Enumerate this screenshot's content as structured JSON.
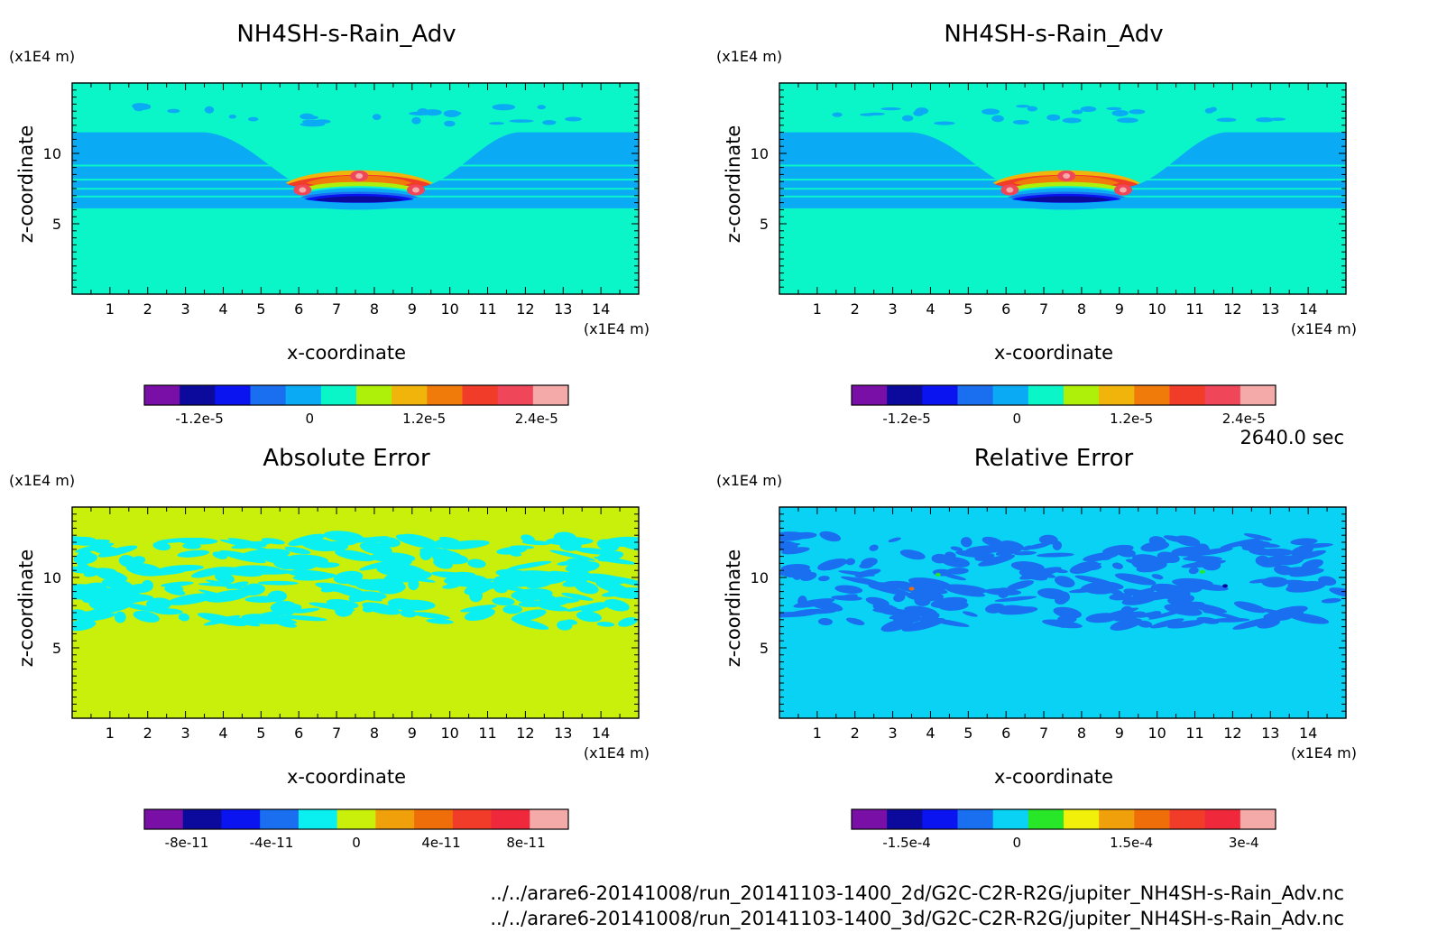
{
  "time_label": "2640.0 sec",
  "files": [
    "../../arare6-20141008/run_20141103-1400_2d/G2C-C2R-R2G/jupiter_NH4SH-s-Rain_Adv.nc",
    "../../arare6-20141008/run_20141103-1400_3d/G2C-C2R-R2G/jupiter_NH4SH-s-Rain_Adv.nc"
  ],
  "chart_data": [
    {
      "type": "heatmap",
      "title": "NH4SH-s-Rain_Adv",
      "xlabel": "x-coordinate",
      "ylabel": "z-coordinate",
      "x_unit": "(x1E4 m)",
      "y_unit": "(x1E4 m)",
      "xlim": [
        0,
        15
      ],
      "ylim": [
        0,
        15
      ],
      "xticks": [
        "1",
        "2",
        "3",
        "4",
        "5",
        "6",
        "7",
        "8",
        "9",
        "10",
        "11",
        "12",
        "13",
        "14"
      ],
      "yticks": [
        "5",
        "10"
      ],
      "colorbar": {
        "colors": [
          "#7a0fa8",
          "#0c0a9c",
          "#0a14f0",
          "#1a6ef0",
          "#0aaaf5",
          "#0af5c8",
          "#aef00a",
          "#f0b40a",
          "#f07a0a",
          "#f03c28",
          "#f0465a",
          "#f5aaaa"
        ],
        "tick_labels": [
          "-1.2e-5",
          "0",
          "1.2e-5",
          "2.4e-5"
        ]
      }
    },
    {
      "type": "heatmap",
      "title": "NH4SH-s-Rain_Adv",
      "xlabel": "x-coordinate",
      "ylabel": "z-coordinate",
      "x_unit": "(x1E4 m)",
      "y_unit": "(x1E4 m)",
      "xlim": [
        0,
        15
      ],
      "ylim": [
        0,
        15
      ],
      "xticks": [
        "1",
        "2",
        "3",
        "4",
        "5",
        "6",
        "7",
        "8",
        "9",
        "10",
        "11",
        "12",
        "13",
        "14"
      ],
      "yticks": [
        "5",
        "10"
      ],
      "colorbar": {
        "colors": [
          "#7a0fa8",
          "#0c0a9c",
          "#0a14f0",
          "#1a6ef0",
          "#0aaaf5",
          "#0af5c8",
          "#aef00a",
          "#f0b40a",
          "#f07a0a",
          "#f03c28",
          "#f0465a",
          "#f5aaaa"
        ],
        "tick_labels": [
          "-1.2e-5",
          "0",
          "1.2e-5",
          "2.4e-5"
        ]
      }
    },
    {
      "type": "heatmap",
      "title": "Absolute Error",
      "xlabel": "x-coordinate",
      "ylabel": "z-coordinate",
      "x_unit": "(x1E4 m)",
      "y_unit": "(x1E4 m)",
      "xlim": [
        0,
        15
      ],
      "ylim": [
        0,
        15
      ],
      "xticks": [
        "1",
        "2",
        "3",
        "4",
        "5",
        "6",
        "7",
        "8",
        "9",
        "10",
        "11",
        "12",
        "13",
        "14"
      ],
      "yticks": [
        "5",
        "10"
      ],
      "colorbar": {
        "colors": [
          "#7a0fa8",
          "#0c0a9c",
          "#0a14f0",
          "#1a6ef0",
          "#0af0f0",
          "#c8f00a",
          "#f0a00a",
          "#f06e0a",
          "#f03c28",
          "#f0283c",
          "#f5aaaa"
        ],
        "tick_labels": [
          "-8e-11",
          "-4e-11",
          "0",
          "4e-11",
          "8e-11"
        ]
      }
    },
    {
      "type": "heatmap",
      "title": "Relative Error",
      "xlabel": "x-coordinate",
      "ylabel": "z-coordinate",
      "x_unit": "(x1E4 m)",
      "y_unit": "(x1E4 m)",
      "xlim": [
        0,
        15
      ],
      "ylim": [
        0,
        15
      ],
      "xticks": [
        "1",
        "2",
        "3",
        "4",
        "5",
        "6",
        "7",
        "8",
        "9",
        "10",
        "11",
        "12",
        "13",
        "14"
      ],
      "yticks": [
        "5",
        "10"
      ],
      "colorbar": {
        "colors": [
          "#7a0fa8",
          "#0c0a9c",
          "#0a14f0",
          "#1a6ef0",
          "#0ad2f5",
          "#28e628",
          "#f0f00a",
          "#f0a00a",
          "#f06e0a",
          "#f03c28",
          "#f0283c",
          "#f5aaaa"
        ],
        "tick_labels": [
          "-1.5e-4",
          "0",
          "1.5e-4",
          "3e-4"
        ]
      }
    }
  ]
}
